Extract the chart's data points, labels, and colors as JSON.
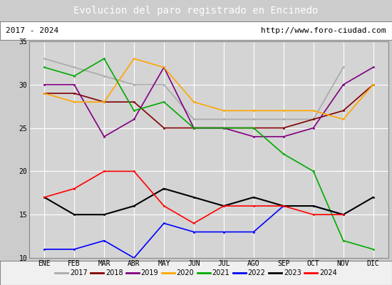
{
  "title": "Evolucion del paro registrado en Encinedo",
  "subtitle_left": "2017 - 2024",
  "subtitle_right": "http://www.foro-ciudad.com",
  "months": [
    "ENE",
    "FEB",
    "MAR",
    "ABR",
    "MAY",
    "JUN",
    "JUL",
    "AGO",
    "SEP",
    "OCT",
    "NOV",
    "DIC"
  ],
  "ylim": [
    10,
    35
  ],
  "yticks": [
    10,
    15,
    20,
    25,
    30,
    35
  ],
  "series": {
    "2017": {
      "values": [
        33,
        32,
        31,
        30,
        30,
        26,
        26,
        26,
        26,
        26,
        32,
        null
      ],
      "color": "#aaaaaa",
      "lw": 1.2
    },
    "2018": {
      "values": [
        29,
        29,
        28,
        28,
        25,
        25,
        25,
        25,
        25,
        26,
        27,
        30
      ],
      "color": "#800000",
      "lw": 1.2
    },
    "2019": {
      "values": [
        30,
        30,
        24,
        26,
        32,
        25,
        25,
        24,
        24,
        25,
        30,
        32
      ],
      "color": "#800080",
      "lw": 1.2
    },
    "2020": {
      "values": [
        29,
        28,
        28,
        33,
        32,
        28,
        27,
        27,
        27,
        27,
        26,
        30
      ],
      "color": "#ffa500",
      "lw": 1.2
    },
    "2021": {
      "values": [
        32,
        31,
        33,
        27,
        28,
        25,
        25,
        25,
        22,
        20,
        12,
        11
      ],
      "color": "#00aa00",
      "lw": 1.2
    },
    "2022": {
      "values": [
        11,
        11,
        12,
        10,
        14,
        13,
        13,
        13,
        16,
        16,
        15,
        null
      ],
      "color": "#0000ff",
      "lw": 1.2
    },
    "2023": {
      "values": [
        17,
        15,
        15,
        16,
        18,
        17,
        16,
        17,
        16,
        16,
        15,
        17
      ],
      "color": "#000000",
      "lw": 1.5
    },
    "2024": {
      "values": [
        17,
        18,
        20,
        20,
        16,
        14,
        16,
        16,
        16,
        15,
        15,
        null
      ],
      "color": "#ff0000",
      "lw": 1.2
    }
  },
  "background_color": "#cccccc",
  "plot_bg_color": "#d4d4d4",
  "title_bg_color": "#4466bb",
  "title_color": "#ffffff",
  "subtitle_bg_color": "#ffffff",
  "grid_color": "#ffffff",
  "legend_bg_color": "#f0f0f0"
}
